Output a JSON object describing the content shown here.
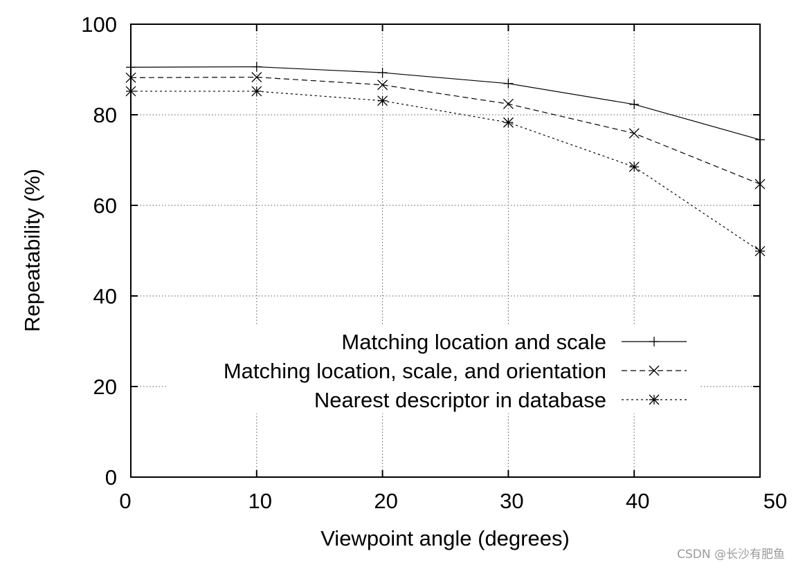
{
  "chart_data": {
    "type": "line",
    "title": "",
    "xlabel": "Viewpoint angle (degrees)",
    "ylabel": "Repeatability (%)",
    "x": [
      0,
      10,
      20,
      30,
      40,
      50
    ],
    "xlim": [
      0,
      50
    ],
    "ylim": [
      0,
      100
    ],
    "xticks": [
      0,
      10,
      20,
      30,
      40,
      50
    ],
    "yticks": [
      0,
      20,
      40,
      60,
      80,
      100
    ],
    "grid": true,
    "legend_position": "lower-right (inside plot)",
    "series": [
      {
        "name": "Matching location and scale",
        "style": "solid",
        "marker": "+",
        "values": [
          90.5,
          90.6,
          89.3,
          86.9,
          82.3,
          74.5
        ]
      },
      {
        "name": "Matching location, scale, and orientation",
        "style": "dashed",
        "marker": "x",
        "values": [
          88.2,
          88.3,
          86.6,
          82.4,
          75.9,
          64.7
        ]
      },
      {
        "name": "Nearest descriptor in database",
        "style": "dotted",
        "marker": "*",
        "values": [
          85.2,
          85.2,
          83.1,
          78.3,
          68.5,
          49.9
        ]
      }
    ]
  },
  "watermark": "CSDN @长沙有肥鱼"
}
